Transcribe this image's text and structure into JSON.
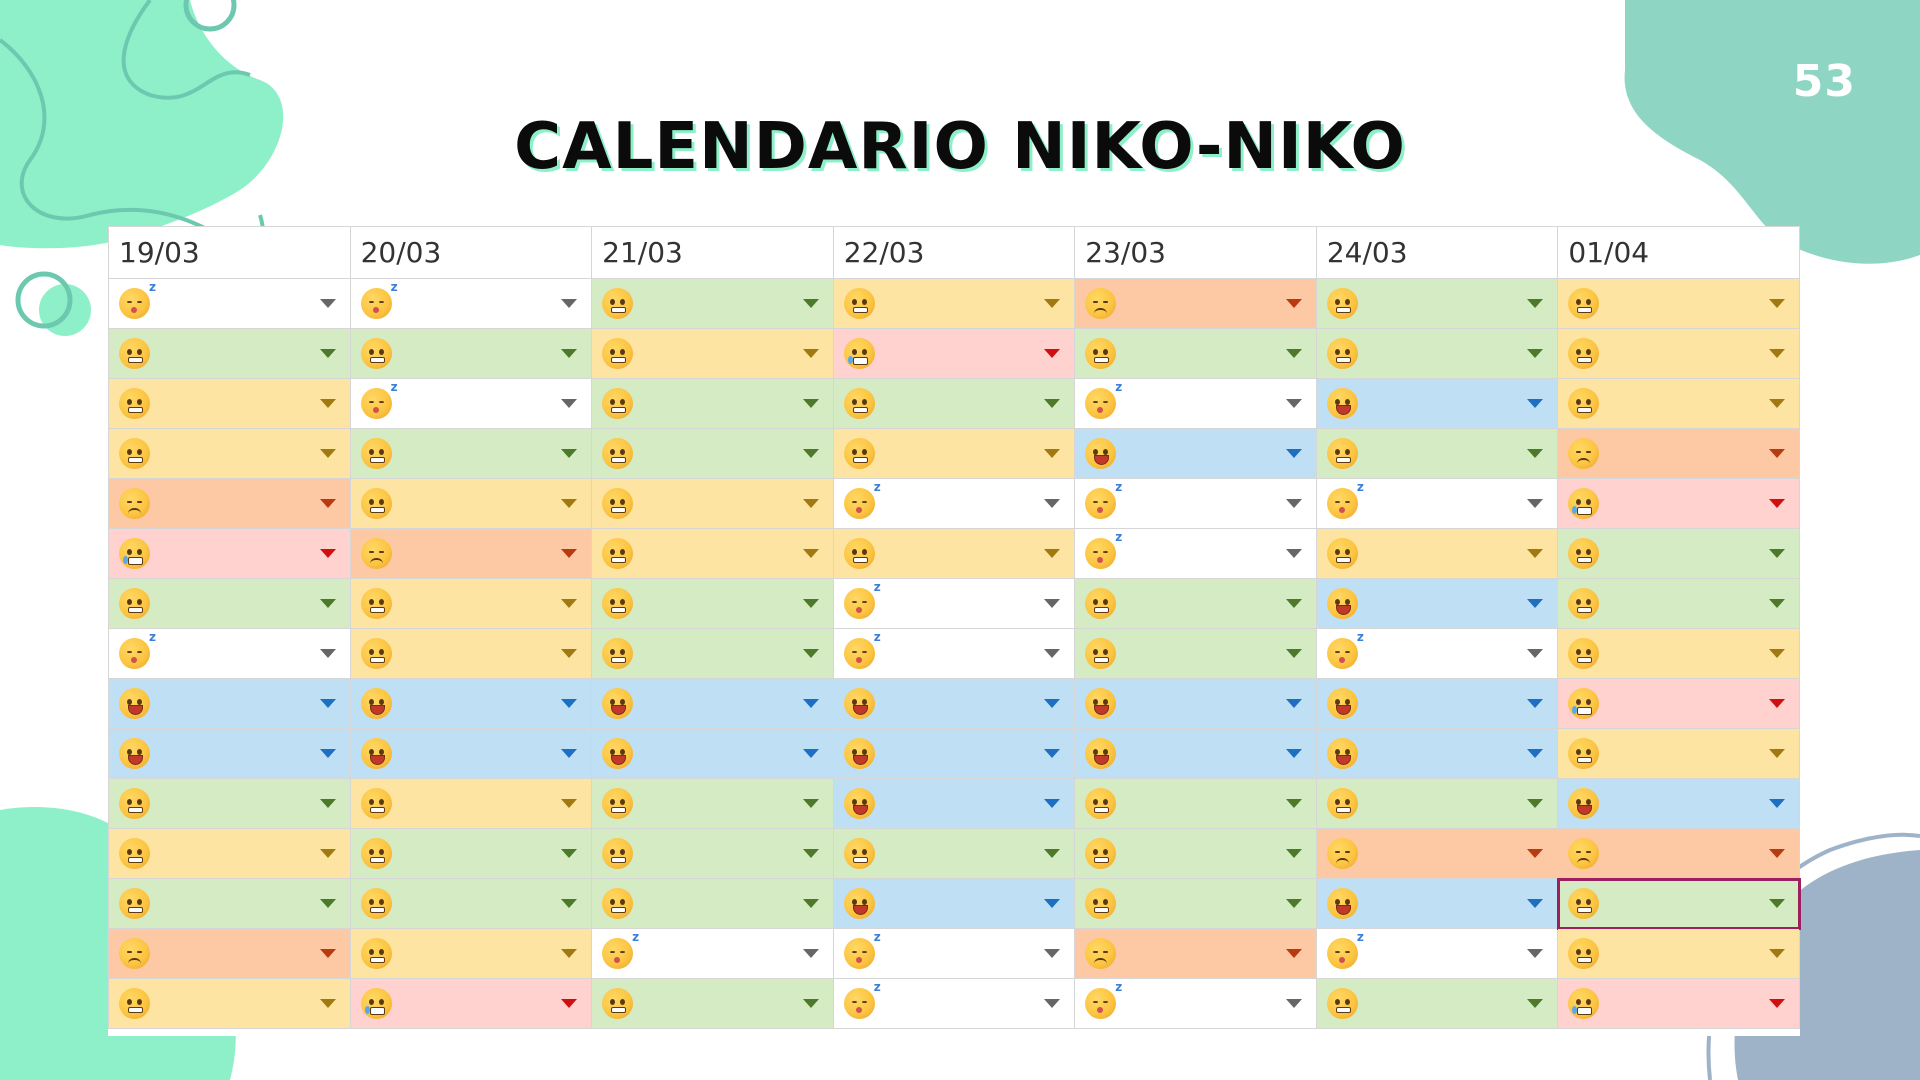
{
  "page": {
    "number": "53",
    "title": "CALENDARIO NIKO-NIKO"
  },
  "palette": {
    "green": "#d4ebc3",
    "yellow": "#fde4a3",
    "white": "#ffffff",
    "orange": "#fdc9a4",
    "pink": "#ffd1cf",
    "blue": "#bfe0f4",
    "arrow_green": "#4c7a2a",
    "arrow_yellow": "#a07a10",
    "arrow_white": "#666666",
    "arrow_orange": "#b83a10",
    "arrow_pink": "#d01010",
    "arrow_blue": "#1e6fc2",
    "selected_border": "#9c1f5f",
    "deco_mint": "#8ef0c8",
    "deco_teal": "#8fd5c3",
    "deco_slate": "#9eb3c8"
  },
  "mood_icons": {
    "smile": "slightly-smiling-face-icon",
    "neutral": "grimacing-face-icon",
    "grin": "grinning-face-icon",
    "sad": "sad-face-icon",
    "cry": "crying-face-icon",
    "sleep": "sleepy-face-icon"
  },
  "calendar": {
    "columns": [
      "19/03",
      "20/03",
      "21/03",
      "22/03",
      "23/03",
      "24/03",
      "01/04"
    ],
    "selected_cell": {
      "row": 13,
      "col": 7
    },
    "rows": [
      [
        [
          "sleep",
          "white"
        ],
        [
          "sleep",
          "white"
        ],
        [
          "smile",
          "green"
        ],
        [
          "neutral",
          "yellow"
        ],
        [
          "sad",
          "orange"
        ],
        [
          "smile",
          "green"
        ],
        [
          "neutral",
          "yellow"
        ]
      ],
      [
        [
          "smile",
          "green"
        ],
        [
          "smile",
          "green"
        ],
        [
          "neutral",
          "yellow"
        ],
        [
          "cry",
          "pink"
        ],
        [
          "smile",
          "green"
        ],
        [
          "smile",
          "green"
        ],
        [
          "neutral",
          "yellow"
        ]
      ],
      [
        [
          "neutral",
          "yellow"
        ],
        [
          "sleep",
          "white"
        ],
        [
          "smile",
          "green"
        ],
        [
          "smile",
          "green"
        ],
        [
          "sleep",
          "white"
        ],
        [
          "grin",
          "blue"
        ],
        [
          "neutral",
          "yellow"
        ]
      ],
      [
        [
          "neutral",
          "yellow"
        ],
        [
          "smile",
          "green"
        ],
        [
          "smile",
          "green"
        ],
        [
          "neutral",
          "yellow"
        ],
        [
          "grin",
          "blue"
        ],
        [
          "smile",
          "green"
        ],
        [
          "sad",
          "orange"
        ]
      ],
      [
        [
          "sad",
          "orange"
        ],
        [
          "neutral",
          "yellow"
        ],
        [
          "neutral",
          "yellow"
        ],
        [
          "sleep",
          "white"
        ],
        [
          "sleep",
          "white"
        ],
        [
          "sleep",
          "white"
        ],
        [
          "cry",
          "pink"
        ]
      ],
      [
        [
          "cry",
          "pink"
        ],
        [
          "sad",
          "orange"
        ],
        [
          "neutral",
          "yellow"
        ],
        [
          "neutral",
          "yellow"
        ],
        [
          "sleep",
          "white"
        ],
        [
          "neutral",
          "yellow"
        ],
        [
          "smile",
          "green"
        ]
      ],
      [
        [
          "smile",
          "green"
        ],
        [
          "neutral",
          "yellow"
        ],
        [
          "smile",
          "green"
        ],
        [
          "sleep",
          "white"
        ],
        [
          "smile",
          "green"
        ],
        [
          "grin",
          "blue"
        ],
        [
          "smile",
          "green"
        ]
      ],
      [
        [
          "sleep",
          "white"
        ],
        [
          "neutral",
          "yellow"
        ],
        [
          "smile",
          "green"
        ],
        [
          "sleep",
          "white"
        ],
        [
          "smile",
          "green"
        ],
        [
          "sleep",
          "white"
        ],
        [
          "neutral",
          "yellow"
        ]
      ],
      [
        [
          "grin",
          "blue"
        ],
        [
          "grin",
          "blue"
        ],
        [
          "grin",
          "blue"
        ],
        [
          "grin",
          "blue"
        ],
        [
          "grin",
          "blue"
        ],
        [
          "grin",
          "blue"
        ],
        [
          "cry",
          "pink"
        ]
      ],
      [
        [
          "grin",
          "blue"
        ],
        [
          "grin",
          "blue"
        ],
        [
          "grin",
          "blue"
        ],
        [
          "grin",
          "blue"
        ],
        [
          "grin",
          "blue"
        ],
        [
          "grin",
          "blue"
        ],
        [
          "neutral",
          "yellow"
        ]
      ],
      [
        [
          "smile",
          "green"
        ],
        [
          "neutral",
          "yellow"
        ],
        [
          "smile",
          "green"
        ],
        [
          "grin",
          "blue"
        ],
        [
          "smile",
          "green"
        ],
        [
          "smile",
          "green"
        ],
        [
          "grin",
          "blue"
        ]
      ],
      [
        [
          "neutral",
          "yellow"
        ],
        [
          "smile",
          "green"
        ],
        [
          "smile",
          "green"
        ],
        [
          "smile",
          "green"
        ],
        [
          "smile",
          "green"
        ],
        [
          "sad",
          "orange"
        ],
        [
          "sad",
          "orange"
        ]
      ],
      [
        [
          "smile",
          "green"
        ],
        [
          "smile",
          "green"
        ],
        [
          "smile",
          "green"
        ],
        [
          "grin",
          "blue"
        ],
        [
          "smile",
          "green"
        ],
        [
          "grin",
          "blue"
        ],
        [
          "smile",
          "green"
        ]
      ],
      [
        [
          "sad",
          "orange"
        ],
        [
          "neutral",
          "yellow"
        ],
        [
          "sleep",
          "white"
        ],
        [
          "sleep",
          "white"
        ],
        [
          "sad",
          "orange"
        ],
        [
          "sleep",
          "white"
        ],
        [
          "neutral",
          "yellow"
        ]
      ],
      [
        [
          "neutral",
          "yellow"
        ],
        [
          "cry",
          "pink"
        ],
        [
          "smile",
          "green"
        ],
        [
          "sleep",
          "white"
        ],
        [
          "sleep",
          "white"
        ],
        [
          "smile",
          "green"
        ],
        [
          "cry",
          "pink"
        ]
      ]
    ]
  }
}
